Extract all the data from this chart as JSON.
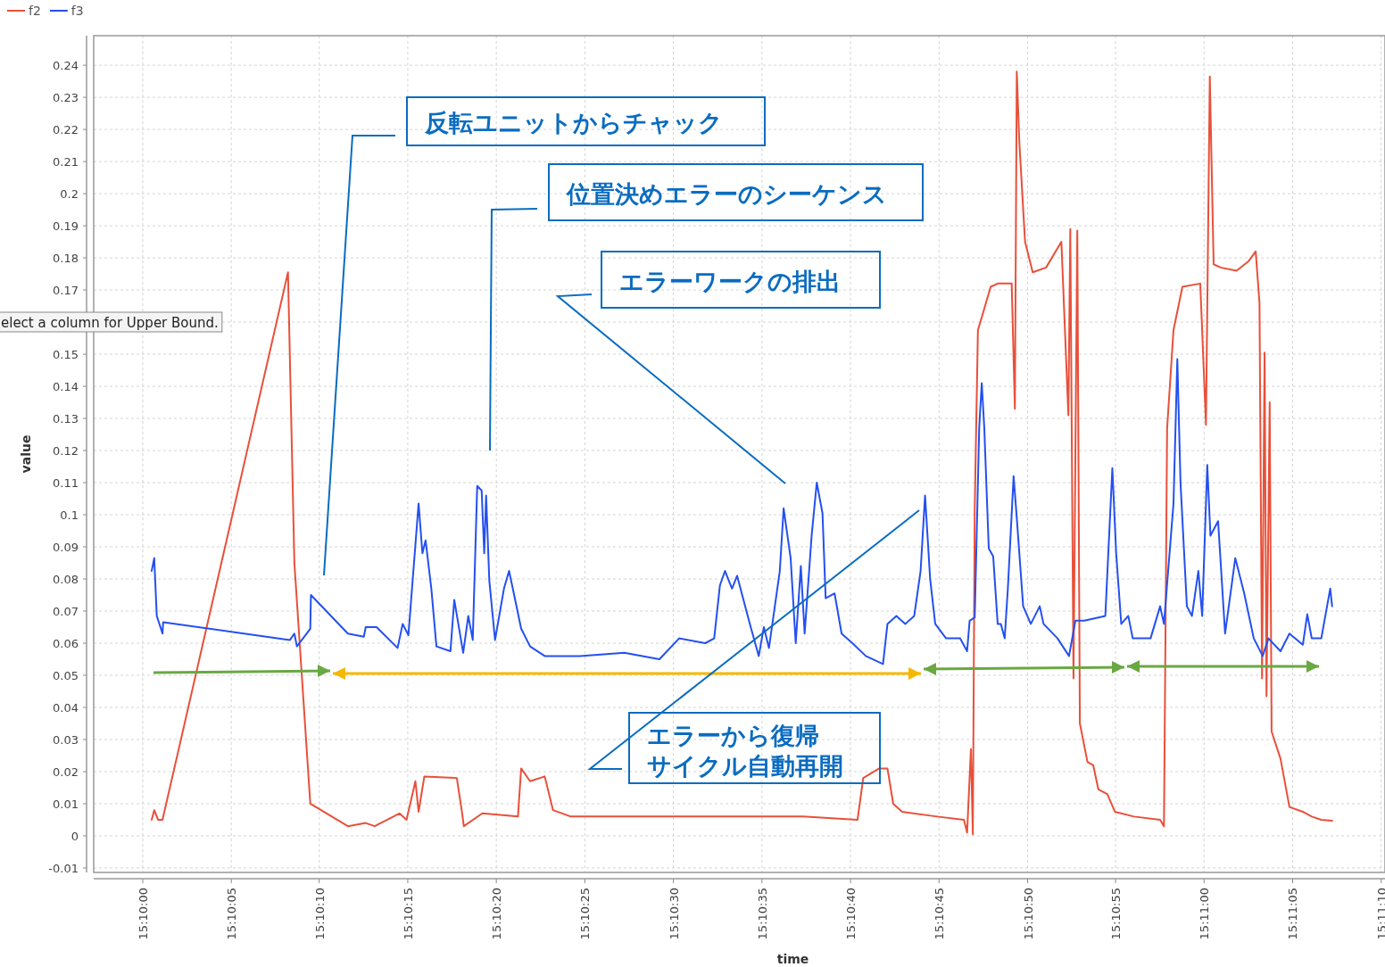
{
  "chart_data": {
    "type": "line",
    "xlabel": "time",
    "ylabel": "value",
    "xlim": [
      15.1659,
      15.18617
    ],
    "ylim": [
      -0.0114,
      0.2492
    ],
    "xticks": [
      {
        "value": 15.16667,
        "label": "15:10:00"
      },
      {
        "value": 15.16806,
        "label": "15:10:05"
      },
      {
        "value": 15.16944,
        "label": "15:10:10"
      },
      {
        "value": 15.17083,
        "label": "15:10:15"
      },
      {
        "value": 15.17222,
        "label": "15:10:20"
      },
      {
        "value": 15.17361,
        "label": "15:10:25"
      },
      {
        "value": 15.175,
        "label": "15:10:30"
      },
      {
        "value": 15.17639,
        "label": "15:10:35"
      },
      {
        "value": 15.17778,
        "label": "15:10:40"
      },
      {
        "value": 15.17917,
        "label": "15:10:45"
      },
      {
        "value": 15.18056,
        "label": "15:10:50"
      },
      {
        "value": 15.18194,
        "label": "15:10:55"
      },
      {
        "value": 15.18333,
        "label": "15:11:00"
      },
      {
        "value": 15.18472,
        "label": "15:11:05"
      },
      {
        "value": 15.18611,
        "label": "15:11:10"
      }
    ],
    "yticks": [
      -0.01,
      0,
      0.01,
      0.02,
      0.03,
      0.04,
      0.05,
      0.06,
      0.07,
      0.08,
      0.09,
      0.1,
      0.11,
      0.12,
      0.13,
      0.14,
      0.15,
      {
        "value": 0.16,
        "label": null
      },
      0.17,
      0.18,
      0.19,
      0.2,
      0.21,
      0.22,
      0.23,
      0.24
    ],
    "grid": true,
    "legend": "top left",
    "line_style": "solid",
    "marker": "none",
    "series": [
      {
        "name": "f2",
        "color": "#e8503a",
        "x": [
          15.16681,
          15.16685,
          15.16691,
          15.16698,
          15.16895,
          15.16905,
          15.1693,
          15.16989,
          15.17017,
          15.17031,
          15.1707,
          15.17081,
          15.17095,
          15.171,
          15.17109,
          15.1716,
          15.17168,
          15.17171,
          15.172,
          15.17256,
          15.17261,
          15.17275,
          15.17298,
          15.17311,
          15.17339,
          15.17423,
          15.17564,
          15.17703,
          15.17789,
          15.17798,
          15.17823,
          15.17836,
          15.17845,
          15.17859,
          15.17914,
          15.17956,
          15.17961,
          15.17967,
          15.1797,
          15.17973,
          15.17978,
          15.17984,
          15.17998,
          15.18009,
          15.18031,
          15.18036,
          15.18039,
          15.18043,
          15.18052,
          15.18064,
          15.18085,
          15.18109,
          15.1812,
          15.18123,
          15.18128,
          15.18134,
          15.18138,
          15.1815,
          15.18159,
          15.18167,
          15.18181,
          15.18193,
          15.18223,
          15.18264,
          15.1827,
          15.18275,
          15.18285,
          15.18299,
          15.18327,
          15.18336,
          15.18342,
          15.18348,
          15.18359,
          15.18384,
          15.18403,
          15.18414,
          15.1842,
          15.18424,
          15.18428,
          15.18431,
          15.18436,
          15.18439,
          15.18453,
          15.18467,
          15.18488,
          15.18502,
          15.18517,
          15.18534
        ],
        "values": [
          0.005,
          0.008,
          0.005,
          0.005,
          0.1755,
          0.085,
          0.01,
          0.003,
          0.004,
          0.003,
          0.007,
          0.005,
          0.017,
          0.0075,
          0.0185,
          0.018,
          0.0075,
          0.003,
          0.007,
          0.006,
          0.021,
          0.017,
          0.0185,
          0.008,
          0.006,
          0.006,
          0.006,
          0.006,
          0.005,
          0.018,
          0.021,
          0.021,
          0.01,
          0.0075,
          0.006,
          0.005,
          0.001,
          0.027,
          0.0005,
          0.102,
          0.1575,
          0.1615,
          0.171,
          0.172,
          0.172,
          0.133,
          0.238,
          0.216,
          0.185,
          0.1755,
          0.177,
          0.185,
          0.131,
          0.189,
          0.049,
          0.1885,
          0.035,
          0.023,
          0.022,
          0.0145,
          0.013,
          0.0075,
          0.006,
          0.005,
          0.003,
          0.127,
          0.1575,
          0.171,
          0.172,
          0.128,
          0.2365,
          0.178,
          0.177,
          0.176,
          0.179,
          0.182,
          0.166,
          0.049,
          0.1505,
          0.0435,
          0.135,
          0.0325,
          0.024,
          0.009,
          0.0075,
          0.006,
          0.005,
          0.0047
        ]
      },
      {
        "name": "f3",
        "color": "#2450f0",
        "x": [
          15.16681,
          15.16685,
          15.16689,
          15.16698,
          15.16699,
          15.16898,
          15.16905,
          15.16909,
          15.1693,
          15.16931,
          15.16989,
          15.17014,
          15.17017,
          15.17034,
          15.17067,
          15.17075,
          15.17084,
          15.171,
          15.17106,
          15.17111,
          15.1712,
          15.17128,
          15.1715,
          15.17156,
          15.1717,
          15.17178,
          15.17185,
          15.17192,
          15.17199,
          15.17203,
          15.17206,
          15.17211,
          15.1722,
          15.17234,
          15.17242,
          15.1725,
          15.17261,
          15.17275,
          15.17298,
          15.17353,
          15.17423,
          15.17478,
          15.17509,
          15.1755,
          15.17564,
          15.17573,
          15.17581,
          15.17592,
          15.176,
          15.1762,
          15.17634,
          15.17642,
          15.1765,
          15.17667,
          15.17673,
          15.17684,
          15.17692,
          15.177,
          15.17706,
          15.17717,
          15.17725,
          15.17734,
          15.17739,
          15.17753,
          15.17764,
          15.17781,
          15.17802,
          15.17829,
          15.17836,
          15.1785,
          15.17864,
          15.17878,
          15.17888,
          15.17895,
          15.17903,
          15.17911,
          15.17928,
          15.1795,
          15.17961,
          15.17965,
          15.17973,
          15.1798,
          15.17984,
          15.17988,
          15.17995,
          15.18002,
          15.18009,
          15.18014,
          15.1802,
          15.18025,
          15.18034,
          15.18039,
          15.18049,
          15.18061,
          15.18075,
          15.18081,
          15.18103,
          15.18121,
          15.18131,
          15.18145,
          15.18178,
          15.18189,
          15.18195,
          15.18203,
          15.18214,
          15.18221,
          15.18249,
          15.18264,
          15.1827,
          15.18285,
          15.18291,
          15.18296,
          15.18306,
          15.18314,
          15.18324,
          15.1833,
          15.18338,
          15.18343,
          15.18355,
          15.18366,
          15.18382,
          15.18396,
          15.18411,
          15.18425,
          15.18434,
          15.18453,
          15.18467,
          15.18488,
          15.18495,
          15.18502,
          15.18517,
          15.18531,
          15.18534
        ],
        "values": [
          0.0825,
          0.0865,
          0.0685,
          0.063,
          0.0665,
          0.061,
          0.063,
          0.059,
          0.0645,
          0.075,
          0.063,
          0.062,
          0.065,
          0.065,
          0.0585,
          0.066,
          0.0625,
          0.1035,
          0.088,
          0.092,
          0.077,
          0.059,
          0.0575,
          0.0735,
          0.057,
          0.0685,
          0.061,
          0.109,
          0.1075,
          0.088,
          0.106,
          0.0795,
          0.061,
          0.077,
          0.0825,
          0.075,
          0.0645,
          0.059,
          0.056,
          0.056,
          0.057,
          0.055,
          0.0615,
          0.06,
          0.0615,
          0.078,
          0.0825,
          0.077,
          0.081,
          0.066,
          0.056,
          0.065,
          0.0585,
          0.0825,
          0.102,
          0.0865,
          0.06,
          0.084,
          0.063,
          0.0935,
          0.11,
          0.1005,
          0.074,
          0.0755,
          0.063,
          0.06,
          0.056,
          0.0535,
          0.066,
          0.0685,
          0.066,
          0.0685,
          0.0825,
          0.106,
          0.08,
          0.066,
          0.0615,
          0.0615,
          0.0575,
          0.067,
          0.068,
          0.127,
          0.141,
          0.127,
          0.0895,
          0.087,
          0.066,
          0.066,
          0.0615,
          0.077,
          0.112,
          0.099,
          0.0715,
          0.066,
          0.0715,
          0.066,
          0.0615,
          0.056,
          0.067,
          0.067,
          0.0685,
          0.1145,
          0.088,
          0.066,
          0.0685,
          0.0615,
          0.0615,
          0.0715,
          0.066,
          0.1035,
          0.1485,
          0.11,
          0.0715,
          0.0685,
          0.0825,
          0.0685,
          0.1155,
          0.0935,
          0.098,
          0.063,
          0.0865,
          0.0755,
          0.0615,
          0.056,
          0.0615,
          0.0575,
          0.063,
          0.0595,
          0.069,
          0.0615,
          0.0615,
          0.077,
          0.0715
        ]
      }
    ],
    "annotations": [
      "反転ユニットからチャック",
      "位置決めエラーのシーケンス",
      "エラーワークの排出",
      "エラーから復帰",
      "サイクル自動再開",
      "elect a column for Upper Bound."
    ]
  }
}
